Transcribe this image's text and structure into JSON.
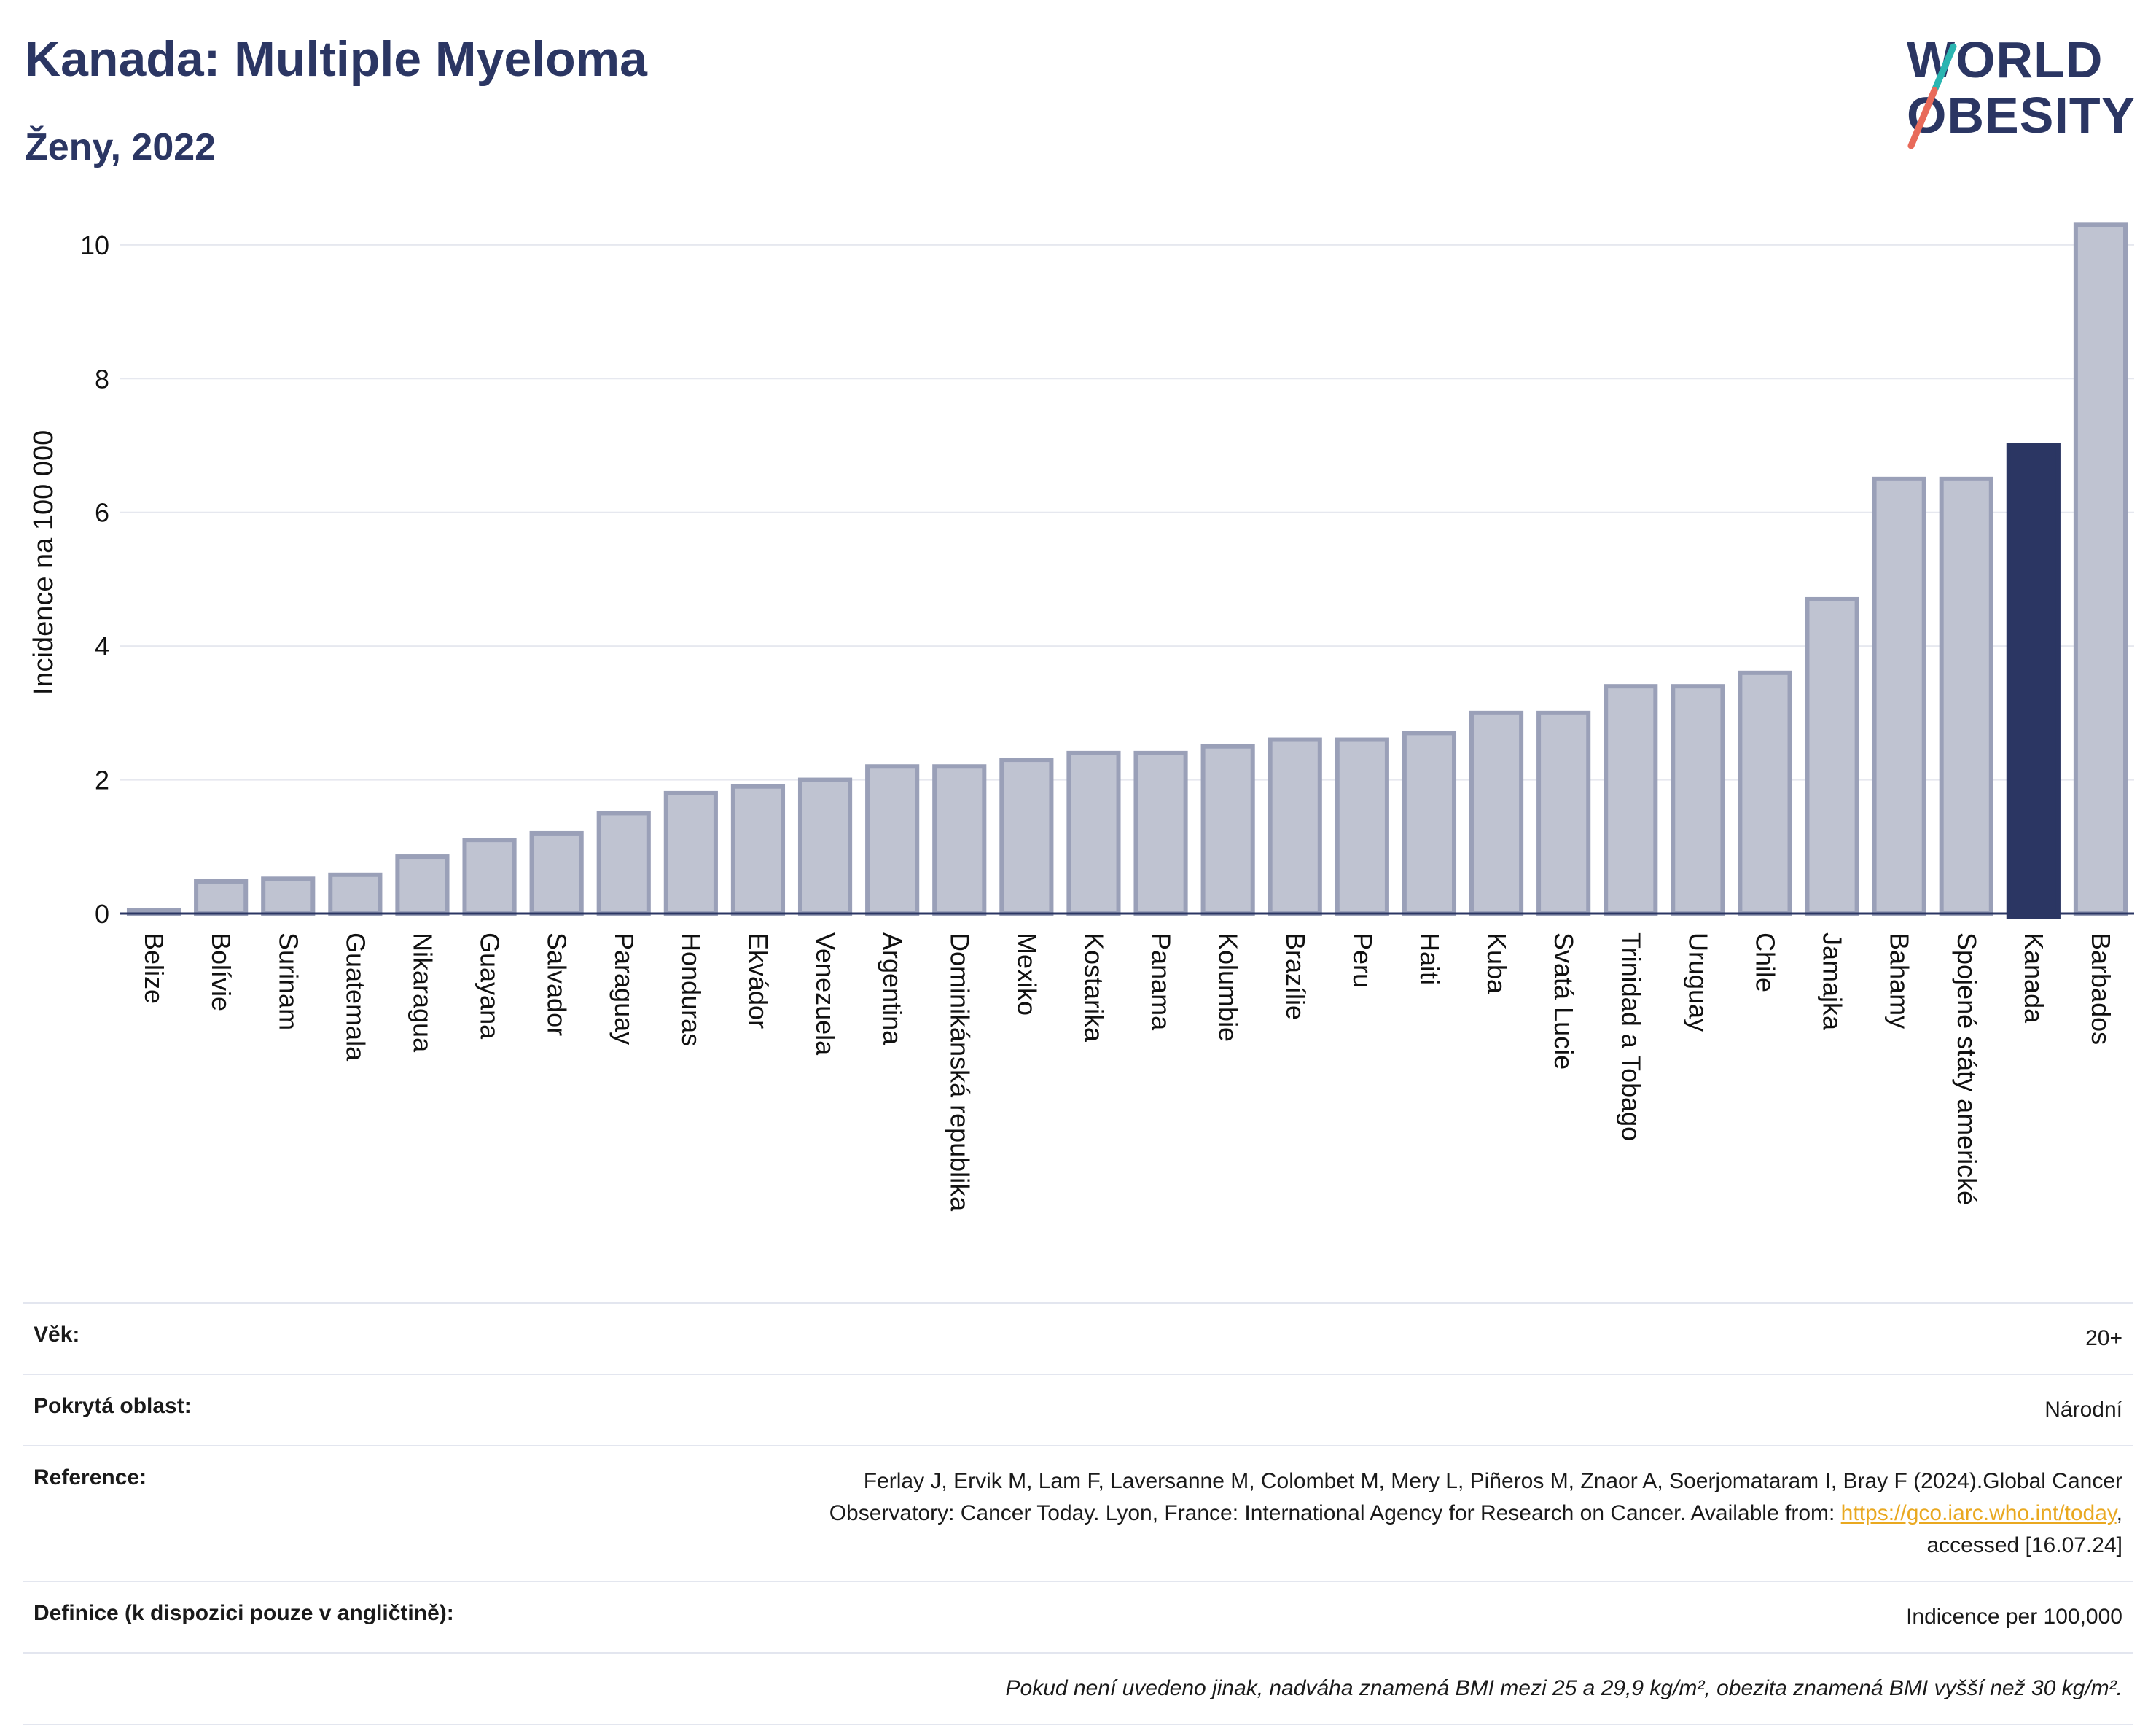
{
  "header": {
    "title": "Kanada: Multiple Myeloma",
    "subtitle": "Ženy, 2022"
  },
  "logo": {
    "line1": "WORLD",
    "line2": "OBESITY",
    "colors": {
      "text": "#2b3663",
      "slash_teal": "#2bb5b1",
      "slash_coral": "#e86a5a"
    }
  },
  "chart_data": {
    "type": "bar",
    "ylabel": "Incidence na 100 000",
    "ylim": [
      0,
      10.5
    ],
    "yticks": [
      0,
      2,
      4,
      6,
      8,
      10
    ],
    "grid": true,
    "categories": [
      "Belize",
      "Bolívie",
      "Surinam",
      "Guatemala",
      "Nikaragua",
      "Guayana",
      "Salvador",
      "Paraguay",
      "Honduras",
      "Ekvádor",
      "Venezuela",
      "Argentina",
      "Dominikánská republika",
      "Mexiko",
      "Kostarika",
      "Panama",
      "Kolumbie",
      "Brazílie",
      "Peru",
      "Haiti",
      "Kuba",
      "Svatá Lucie",
      "Trinidad a Tobago",
      "Uruguay",
      "Chile",
      "Jamajka",
      "Bahamy",
      "Spojené státy americké",
      "Kanada",
      "Barbados"
    ],
    "values": [
      0.05,
      0.48,
      0.52,
      0.58,
      0.85,
      1.1,
      1.2,
      1.5,
      1.8,
      1.9,
      2.0,
      2.2,
      2.2,
      2.3,
      2.4,
      2.4,
      2.5,
      2.6,
      2.6,
      2.7,
      3.0,
      3.0,
      3.4,
      3.4,
      3.6,
      4.7,
      6.5,
      6.5,
      7.0,
      10.3
    ],
    "highlight": "Kanada",
    "colors": {
      "bar": "#bfc3d1",
      "bar_stroke": "#9aa0b8",
      "highlight": "#2b3663"
    }
  },
  "meta": {
    "age_label": "Věk:",
    "age_value": "20+",
    "area_label": "Pokrytá oblast:",
    "area_value": "Národní",
    "reference_label": "Reference:",
    "reference_text_1": "Ferlay J, Ervik M, Lam F, Laversanne M, Colombet M, Mery L, Piñeros M, Znaor A, Soerjomataram I, Bray F (2024).Global Cancer",
    "reference_text_2": "Observatory: Cancer Today. Lyon, France: International Agency for Research on Cancer. Available from: ",
    "reference_link": "https://gco.iarc.who.int/today",
    "reference_text_3": ",",
    "reference_text_4": "accessed [16.07.24]",
    "definition_label": "Definice (k dispozici pouze v angličtině):",
    "definition_value": "Indicence per 100,000",
    "note": "Pokud není uvedeno jinak, nadváha znamená BMI mezi 25 a 29,9 kg/m², obezita znamená BMI vyšší než 30 kg/m²."
  }
}
